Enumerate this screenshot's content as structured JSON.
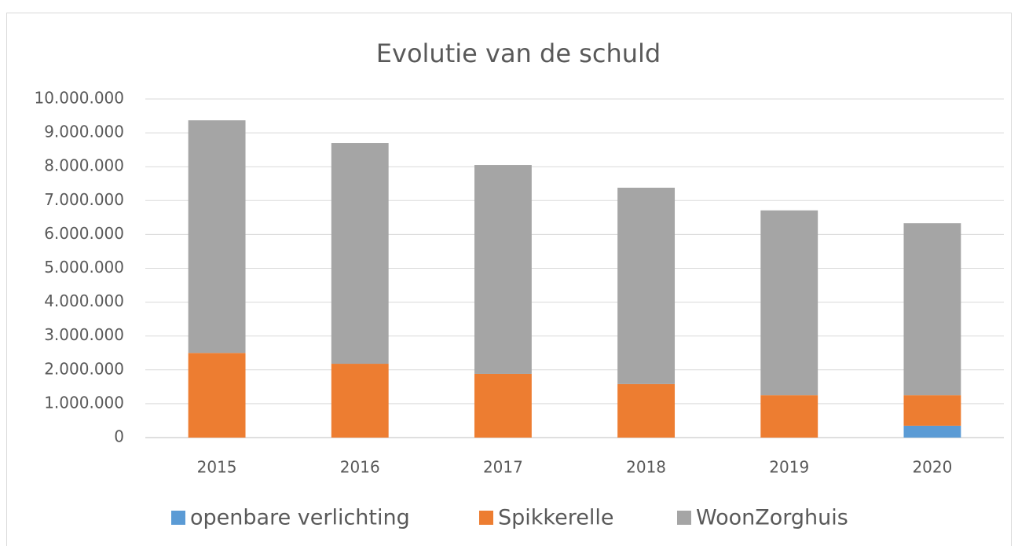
{
  "chart_data": {
    "type": "stacked_bar",
    "title": "Evolutie van de schuld",
    "categories": [
      "2015",
      "2016",
      "2017",
      "2018",
      "2019",
      "2020"
    ],
    "series": [
      {
        "name": "openbare verlichting",
        "color": "#5b9bd5",
        "values": [
          0,
          0,
          0,
          0,
          0,
          350000
        ]
      },
      {
        "name": "Spikkerelle",
        "color": "#ed7d31",
        "values": [
          2500000,
          2180000,
          1880000,
          1580000,
          1250000,
          900000
        ]
      },
      {
        "name": "WoonZorghuis",
        "color": "#a5a5a5",
        "values": [
          6870000,
          6520000,
          6170000,
          5800000,
          5460000,
          5080000
        ]
      }
    ],
    "ylim": [
      0,
      10000000
    ],
    "yticks": [
      0,
      {
        "value": 1000000,
        "label": "1.000.000"
      },
      {
        "value": 2000000,
        "label": "2.000.000"
      },
      {
        "value": 3000000,
        "label": "3.000.000"
      },
      {
        "value": 4000000,
        "label": "4.000.000"
      },
      {
        "value": 5000000,
        "label": "5.000.000"
      },
      {
        "value": 6000000,
        "label": "6.000.000"
      },
      {
        "value": 7000000,
        "label": "7.000.000"
      },
      {
        "value": 8000000,
        "label": "8.000.000"
      },
      {
        "value": 9000000,
        "label": "9.000.000"
      },
      {
        "value": 10000000,
        "label": "10.000.000"
      }
    ],
    "grid": true,
    "legend": "bottom"
  }
}
